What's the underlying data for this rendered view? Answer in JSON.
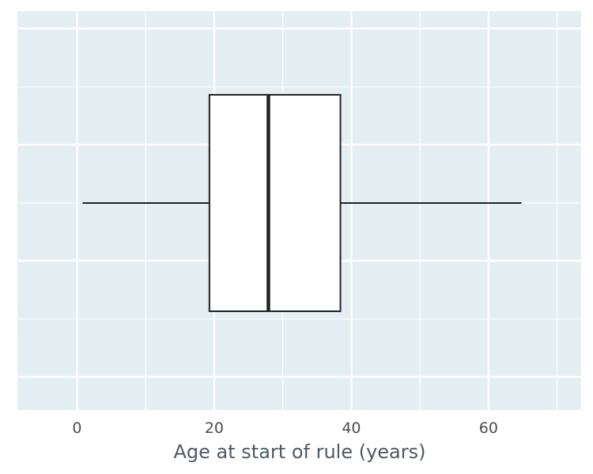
{
  "chart_data": {
    "type": "boxplot",
    "orientation": "horizontal",
    "xlabel": "Age at start of rule (years)",
    "ylabel": "",
    "xlim": [
      -8.7,
      73.5
    ],
    "x_ticks": [
      0,
      20,
      40,
      60
    ],
    "x_tick_labels": [
      "0",
      "20",
      "40",
      "60"
    ],
    "x_minor_ticks": [
      10,
      30,
      50,
      70
    ],
    "grid": true,
    "legend": "none",
    "box": {
      "whisker_low": 0.8,
      "q1": 19.3,
      "median": 27.9,
      "q3": 38.4,
      "whisker_high": 64.8
    },
    "colors": {
      "panel_background": "#e4eff3",
      "grid_line": "#ffffff",
      "box_fill": "#ffffff",
      "box_stroke": "#222222",
      "axis_text": "#4d4d4d",
      "axis_title": "#4d5a66"
    }
  }
}
